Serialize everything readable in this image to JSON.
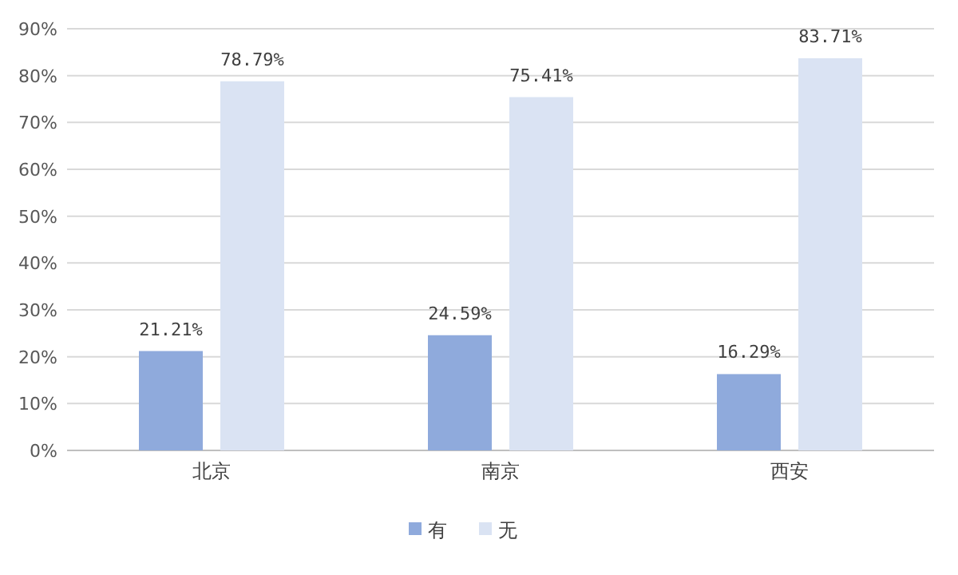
{
  "chart_data": {
    "type": "bar",
    "categories": [
      "北京",
      "南京",
      "西安"
    ],
    "series": [
      {
        "name": "有",
        "color": "#8faadc",
        "values": [
          21.21,
          24.59,
          16.29
        ],
        "value_labels": [
          "21.21%",
          "24.59%",
          "16.29%"
        ]
      },
      {
        "name": "无",
        "color": "#dae3f3",
        "values": [
          78.79,
          75.41,
          83.71
        ],
        "value_labels": [
          "78.79%",
          "75.41%",
          "83.71%"
        ]
      }
    ],
    "ylim": [
      0,
      90
    ],
    "yticks": [
      {
        "value": 0,
        "label": "0%"
      },
      {
        "value": 10,
        "label": "10%"
      },
      {
        "value": 20,
        "label": "20%"
      },
      {
        "value": 30,
        "label": "30%"
      },
      {
        "value": 40,
        "label": "40%"
      },
      {
        "value": 50,
        "label": "50%"
      },
      {
        "value": 60,
        "label": "60%"
      },
      {
        "value": 70,
        "label": "70%"
      },
      {
        "value": 80,
        "label": "80%"
      },
      {
        "value": 90,
        "label": "90%"
      }
    ],
    "grid": "y",
    "legend": "bottom"
  }
}
